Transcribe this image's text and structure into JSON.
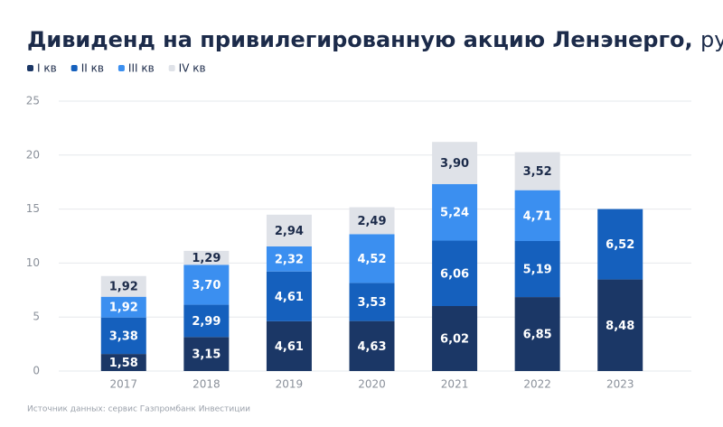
{
  "chart_data": {
    "type": "stacked_bar",
    "title": "Дивиденд на привилегированную акцию Ленэнерго,",
    "title_unit": "руб",
    "source": "Источник данных: сервис Газпромбанк Инвестиции",
    "categories": [
      "2017",
      "2018",
      "2019",
      "2020",
      "2021",
      "2022",
      "2023"
    ],
    "series": [
      {
        "name": "I кв",
        "color": "#1b3766",
        "values": [
          1.58,
          3.15,
          4.61,
          4.63,
          6.02,
          6.85,
          8.48
        ],
        "value_labels": [
          "1,58",
          "3,15",
          "4,61",
          "4,63",
          "6,02",
          "6,85",
          "8,48"
        ]
      },
      {
        "name": "II кв",
        "color": "#1560bd",
        "values": [
          3.38,
          2.99,
          4.61,
          3.53,
          6.06,
          5.19,
          6.52
        ],
        "value_labels": [
          "3,38",
          "2,99",
          "4,61",
          "3,53",
          "6,06",
          "5,19",
          "6,52"
        ]
      },
      {
        "name": "III кв",
        "color": "#3b8ff0",
        "values": [
          1.92,
          3.7,
          2.32,
          4.52,
          5.24,
          4.71,
          null
        ],
        "value_labels": [
          "1,92",
          "3,70",
          "2,32",
          "4,52",
          "5,24",
          "4,71",
          null
        ]
      },
      {
        "name": "IV кв",
        "color": "#dfe2e8",
        "values": [
          1.92,
          1.29,
          2.94,
          2.49,
          3.9,
          3.52,
          null
        ],
        "value_labels": [
          "1,92",
          "1,29",
          "2,94",
          "2,49",
          "3,90",
          "3,52",
          null
        ]
      }
    ],
    "ylim": [
      0,
      25
    ],
    "yticks": [
      0,
      5,
      10,
      15,
      20,
      25
    ],
    "grid": true
  }
}
